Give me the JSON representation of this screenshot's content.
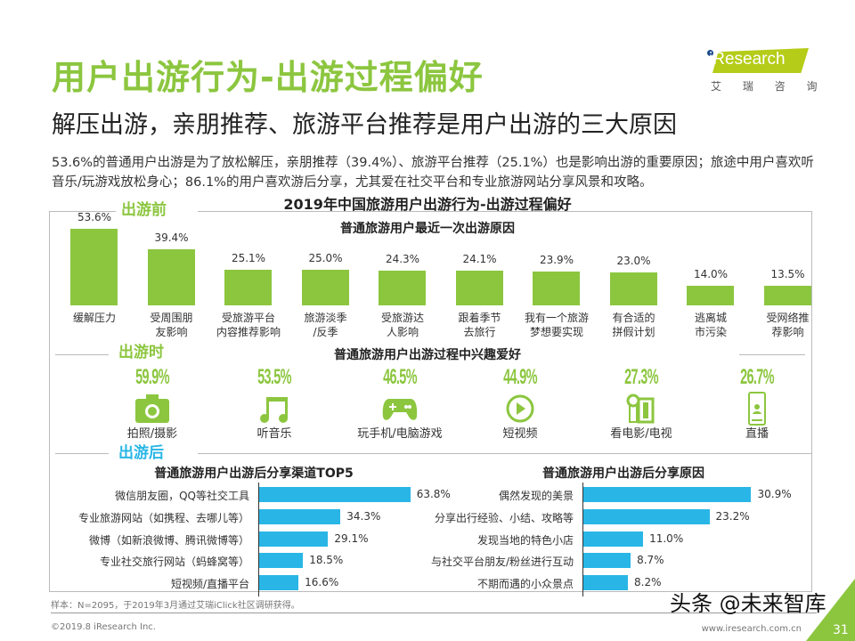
{
  "header": {
    "title": "用户出游行为-出游过程偏好",
    "subtitle": "解压出游，亲朋推荐、旅游平台推荐是用户出游的三大原因",
    "paragraph": "53.6%的普通用户出游是为了放松解压，亲朋推荐（39.4%）、旅游平台推荐（25.1%）也是影响出游的重要原因；旅途中用户喜欢听音乐/玩游戏放松身心；86.1%的用户喜欢游后分享，尤其爱在社交平台和专业旅游网站分享风景和攻略。"
  },
  "logo": {
    "brand": "iResearch",
    "cn": "艾 瑞 咨 询",
    "color": "#b5cc18"
  },
  "colors": {
    "green": "#8cc63f",
    "blue": "#29b6e6"
  },
  "chart_data": [
    {
      "title": "2019年中国旅游用户出游行为-出游过程偏好",
      "section": "出游前",
      "subtitle": "普通旅游用户最近一次出游原因",
      "type": "bar",
      "unit": "%",
      "categories": [
        [
          "缓解压力"
        ],
        [
          "受周围朋",
          "友影响"
        ],
        [
          "受旅游平台",
          "内容推荐影响"
        ],
        [
          "旅游淡季",
          "/反季"
        ],
        [
          "受旅游达",
          "人影响"
        ],
        [
          "跟着季节",
          "去旅行"
        ],
        [
          "我有一个旅游",
          "梦想要实现"
        ],
        [
          "有合适的",
          "拼假计划"
        ],
        [
          "逃离城",
          "市污染"
        ],
        [
          "受网络推",
          "荐影响"
        ]
      ],
      "values": [
        53.6,
        39.4,
        25.1,
        25.0,
        24.3,
        24.1,
        23.9,
        23.0,
        14.0,
        13.5
      ],
      "labels": [
        "53.6%",
        "39.4%",
        "25.1%",
        "25.0%",
        "24.3%",
        "24.1%",
        "23.9%",
        "23.0%",
        "14.0%",
        "13.5%"
      ]
    },
    {
      "section": "出游时",
      "subtitle": "普通旅游用户出游过程中兴趣爱好",
      "type": "table",
      "items": [
        {
          "label": "拍照/摄影",
          "value": "59.9%",
          "icon": "camera-icon"
        },
        {
          "label": "听音乐",
          "value": "53.5%",
          "icon": "music-note-icon"
        },
        {
          "label": "玩手机/电脑游戏",
          "value": "46.5%",
          "icon": "gamepad-icon"
        },
        {
          "label": "短视频",
          "value": "44.9%",
          "icon": "play-circle-icon"
        },
        {
          "label": "看电影/电视",
          "value": "27.3%",
          "icon": "film-icon"
        },
        {
          "label": "直播",
          "value": "26.7%",
          "icon": "phone-live-icon"
        }
      ]
    },
    {
      "section": "出游后",
      "subtitle": "普通旅游用户出游后分享渠道TOP5",
      "type": "bar",
      "orientation": "horizontal",
      "categories": [
        "微信朋友圈，QQ等社交工具",
        "专业旅游网站（如携程、去哪儿等）",
        "微博（如新浪微博、腾讯微博等）",
        "专业社交旅行网站（蚂蜂窝等）",
        "短视频/直播平台"
      ],
      "values": [
        63.8,
        34.3,
        29.1,
        18.5,
        16.6
      ],
      "labels": [
        "63.8%",
        "34.3%",
        "29.1%",
        "18.5%",
        "16.6%"
      ]
    },
    {
      "subtitle": "普通旅游用户出游后分享原因",
      "type": "bar",
      "orientation": "horizontal",
      "categories": [
        "偶然发现的美景",
        "分享出行经验、小结、攻略等",
        "发现当地的特色小店",
        "与社交平台朋友/粉丝进行互动",
        "不期而遇的小众景点"
      ],
      "values": [
        30.9,
        23.2,
        11.0,
        8.7,
        8.2
      ],
      "labels": [
        "30.9%",
        "23.2%",
        "11.0%",
        "8.7%",
        "8.2%"
      ]
    }
  ],
  "footer": {
    "note": "样本：N=2095，于2019年3月通过艾瑞iClick社区调研获得。",
    "copyright": "©2019.8 iResearch Inc.",
    "website": "www.iresearch.com.cn",
    "page": "31",
    "watermark": "头条 @未来智库"
  }
}
